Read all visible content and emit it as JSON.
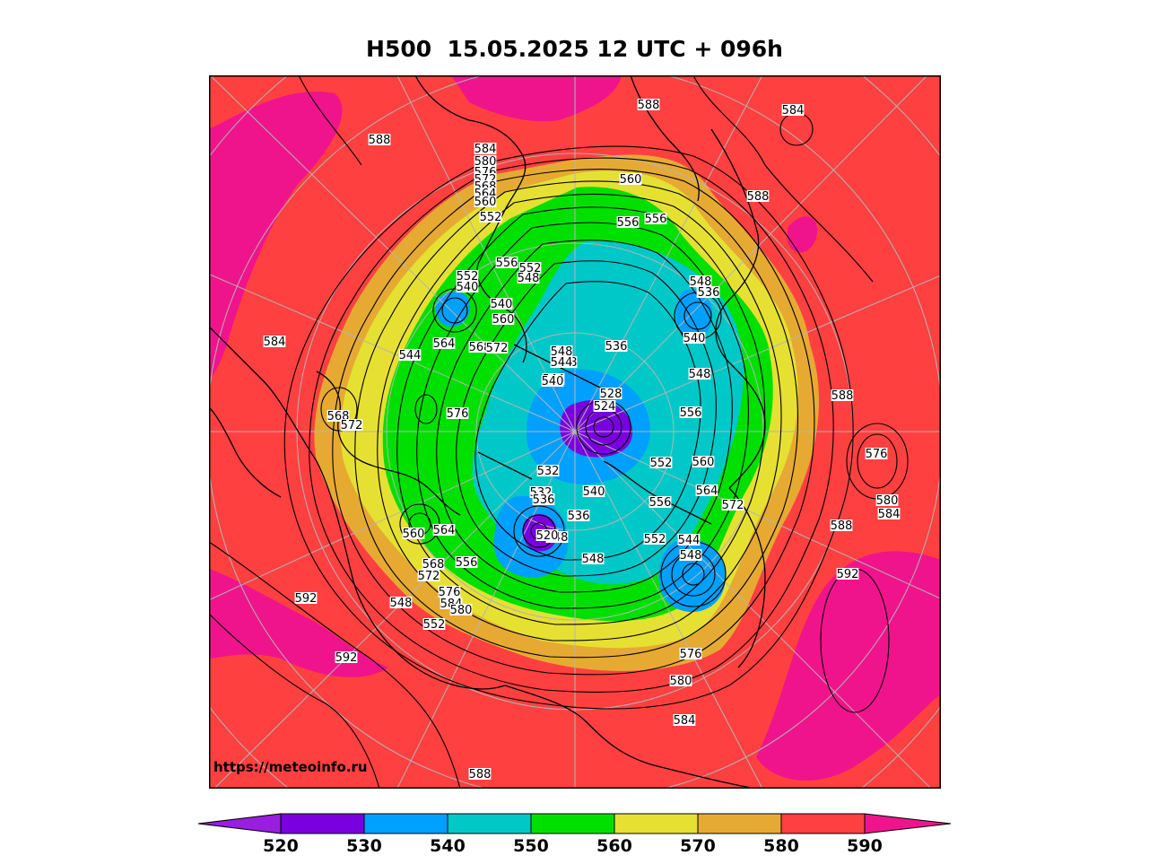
{
  "title": "H500  15.05.2025 12 UTC + 096h",
  "watermark": "https://meteoinfo.ru",
  "colorbar": {
    "ticks": [
      "520",
      "530",
      "540",
      "550",
      "560",
      "570",
      "580",
      "590"
    ],
    "colors": [
      "#9a1ee0",
      "#7a00e0",
      "#00a0ff",
      "#00c8c8",
      "#00e000",
      "#e6e033",
      "#e6aa33",
      "#ff4040",
      "#f0148c"
    ]
  },
  "contour_labels": [
    "584",
    "580",
    "576",
    "572",
    "568",
    "564",
    "560",
    "552",
    "588",
    "588",
    "588",
    "584",
    "560",
    "556",
    "556",
    "588",
    "548",
    "536",
    "556",
    "552",
    "548",
    "552",
    "540",
    "540",
    "560",
    "564",
    "568",
    "572",
    "544",
    "568",
    "572",
    "576",
    "584",
    "576",
    "544",
    "548",
    "548",
    "544",
    "540",
    "536",
    "528",
    "524",
    "536",
    "548",
    "532",
    "532",
    "536",
    "540",
    "520",
    "548",
    "552",
    "556",
    "560",
    "564",
    "568",
    "572",
    "576",
    "584",
    "580",
    "552",
    "548",
    "552",
    "556",
    "548",
    "540",
    "536",
    "544",
    "548",
    "556",
    "560",
    "564",
    "572",
    "576",
    "580",
    "584",
    "580",
    "584",
    "588",
    "592",
    "592",
    "592",
    "588"
  ]
}
